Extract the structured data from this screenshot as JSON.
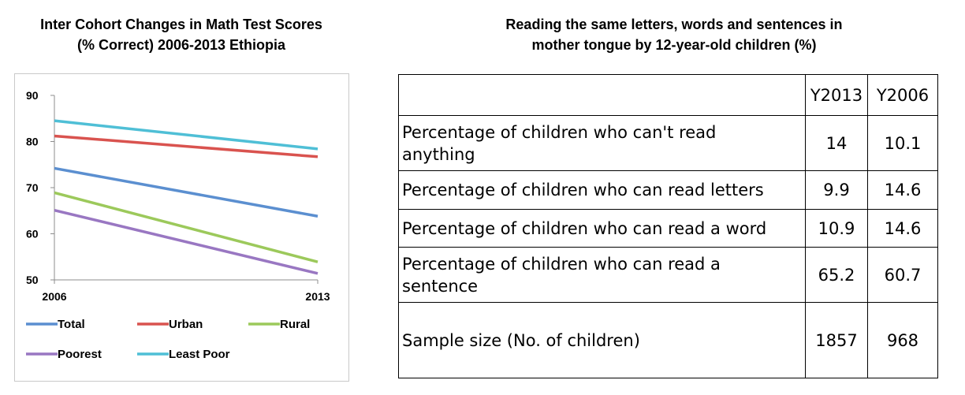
{
  "chart_title": [
    "Inter Cohort Changes in Math Test Scores",
    "(% Correct) 2006-2013 Ethiopia"
  ],
  "table_title": [
    "Reading the same letters, words and sentences in",
    "mother tongue by 12-year-old children (%)"
  ],
  "chart_data": {
    "type": "line",
    "title": "Inter Cohort Changes in Math Test Scores (% Correct) 2006-2013 Ethiopia",
    "x": [
      "2006",
      "2013"
    ],
    "xlabel": "",
    "ylabel": "",
    "ylim": [
      50,
      90
    ],
    "yticks": [
      "50",
      "60",
      "70",
      "80",
      "90"
    ],
    "grid": false,
    "legend_position": "bottom",
    "series": [
      {
        "name": "Total",
        "values": [
          74.2,
          63.8
        ],
        "color": "#5b8fd0"
      },
      {
        "name": "Urban",
        "values": [
          81.2,
          76.7
        ],
        "color": "#d9534f"
      },
      {
        "name": "Rural",
        "values": [
          68.9,
          53.9
        ],
        "color": "#9cc95b"
      },
      {
        "name": "Poorest",
        "values": [
          65.1,
          51.4
        ],
        "color": "#9977c2"
      },
      {
        "name": "Least Poor",
        "values": [
          84.5,
          78.4
        ],
        "color": "#4fbfd6"
      }
    ]
  },
  "table": {
    "headers": [
      "",
      "Y2013",
      "Y2006"
    ],
    "rows": [
      {
        "label": [
          "Percentage of children who can't read",
          "anything"
        ],
        "y2013": "14",
        "y2006": "10.1"
      },
      {
        "label": [
          "Percentage of children who can read letters"
        ],
        "y2013": "9.9",
        "y2006": "14.6"
      },
      {
        "label": [
          "Percentage of children who can read a word"
        ],
        "y2013": "10.9",
        "y2006": "14.6"
      },
      {
        "label": [
          "Percentage of children who can read a",
          "sentence"
        ],
        "y2013": "65.2",
        "y2006": "60.7"
      },
      {
        "label": [
          "Sample size  (No. of children)"
        ],
        "y2013": "1857",
        "y2006": "968"
      }
    ]
  }
}
